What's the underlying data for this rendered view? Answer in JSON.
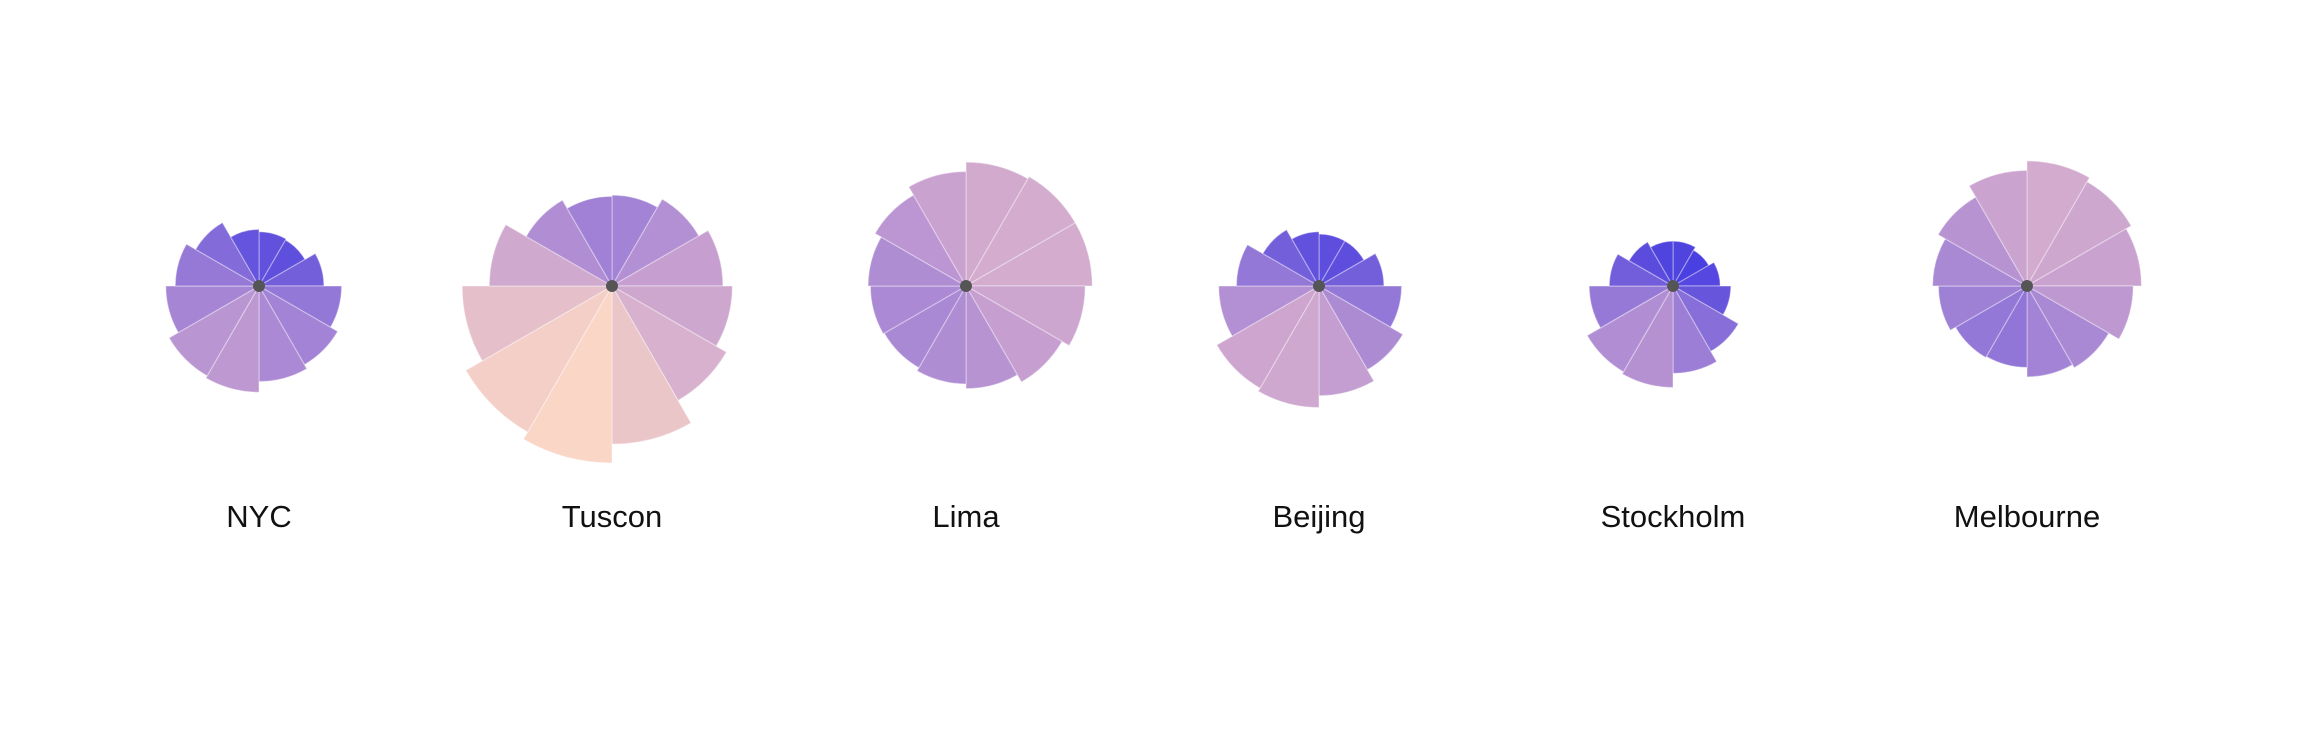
{
  "chart_data": {
    "type": "radial-bar",
    "slices_per_chart": 12,
    "start": "north",
    "direction": "clockwise",
    "color_scale": {
      "low": "#4a3fe0",
      "mid": "#c8a0d0",
      "high": "#fad6c6"
    },
    "charts": [
      {
        "label": "NYC",
        "values": [
          0.46,
          0.45,
          0.55,
          0.7,
          0.77,
          0.81,
          0.9,
          0.88,
          0.79,
          0.71,
          0.62,
          0.48
        ]
      },
      {
        "label": "Tuscon",
        "values": [
          0.77,
          0.85,
          0.94,
          1.02,
          1.12,
          1.34,
          1.5,
          1.43,
          1.27,
          1.04,
          0.84,
          0.76
        ]
      },
      {
        "label": "Lima",
        "values": [
          1.05,
          1.07,
          1.07,
          1.01,
          0.94,
          0.87,
          0.83,
          0.8,
          0.81,
          0.83,
          0.89,
          0.97
        ]
      },
      {
        "label": "Beijing",
        "values": [
          0.44,
          0.44,
          0.55,
          0.7,
          0.82,
          0.93,
          1.03,
          1.0,
          0.85,
          0.7,
          0.55,
          0.46
        ]
      },
      {
        "label": "Stockholm",
        "values": [
          0.38,
          0.35,
          0.4,
          0.49,
          0.64,
          0.74,
          0.86,
          0.84,
          0.71,
          0.54,
          0.43,
          0.38
        ]
      },
      {
        "label": "Melbourne",
        "values": [
          1.06,
          1.02,
          0.97,
          0.9,
          0.8,
          0.77,
          0.69,
          0.7,
          0.75,
          0.8,
          0.87,
          0.98
        ]
      }
    ]
  }
}
